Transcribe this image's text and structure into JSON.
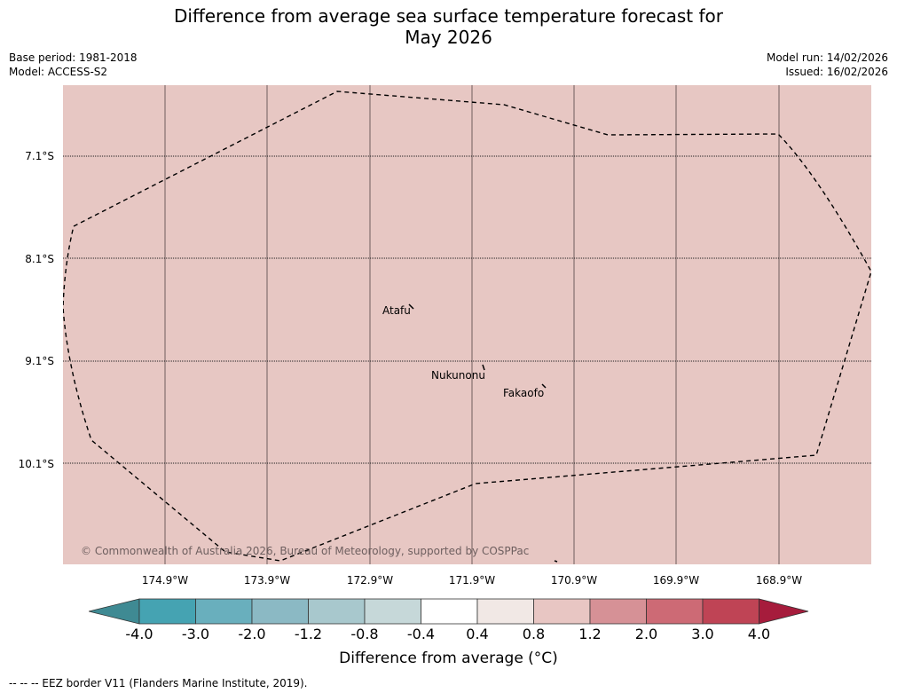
{
  "title": {
    "line1": "Difference from average sea surface temperature forecast for",
    "line2": "May 2026"
  },
  "meta": {
    "base_period": "Base period: 1981-2018",
    "model": "Model: ACCESS-S2",
    "model_run": "Model run: 14/02/2026",
    "issued": "Issued: 16/02/2026"
  },
  "map": {
    "background_color": "#e7c7c3",
    "lat_labels": [
      "7.1°S",
      "8.1°S",
      "9.1°S",
      "10.1°S"
    ],
    "lon_labels": [
      "174.9°W",
      "173.9°W",
      "172.9°W",
      "171.9°W",
      "170.9°W",
      "169.9°W",
      "168.9°W"
    ],
    "places": [
      {
        "name": "Atafu"
      },
      {
        "name": "Nukunonu"
      },
      {
        "name": "Fakaofo"
      }
    ],
    "copyright": "© Commonwealth of Australia 2026, Bureau of Meteorology, supported by COSPPac"
  },
  "colorbar": {
    "ticks": [
      "-4.0",
      "-3.0",
      "-2.0",
      "-1.2",
      "-0.8",
      "-0.4",
      "0.4",
      "0.8",
      "1.2",
      "2.0",
      "3.0",
      "4.0"
    ],
    "colors": [
      "#3f8a93",
      "#45a3b2",
      "#69afbd",
      "#8bb9c4",
      "#a8c8cd",
      "#c6d8d9",
      "#ffffff",
      "#f1e8e5",
      "#e8c6c3",
      "#d69196",
      "#cd6a75",
      "#bf4455",
      "#a61c3c"
    ],
    "label": "Difference from average (°C)"
  },
  "footer": "--  --  -- EEZ border V11 (Flanders Marine Institute, 2019)."
}
